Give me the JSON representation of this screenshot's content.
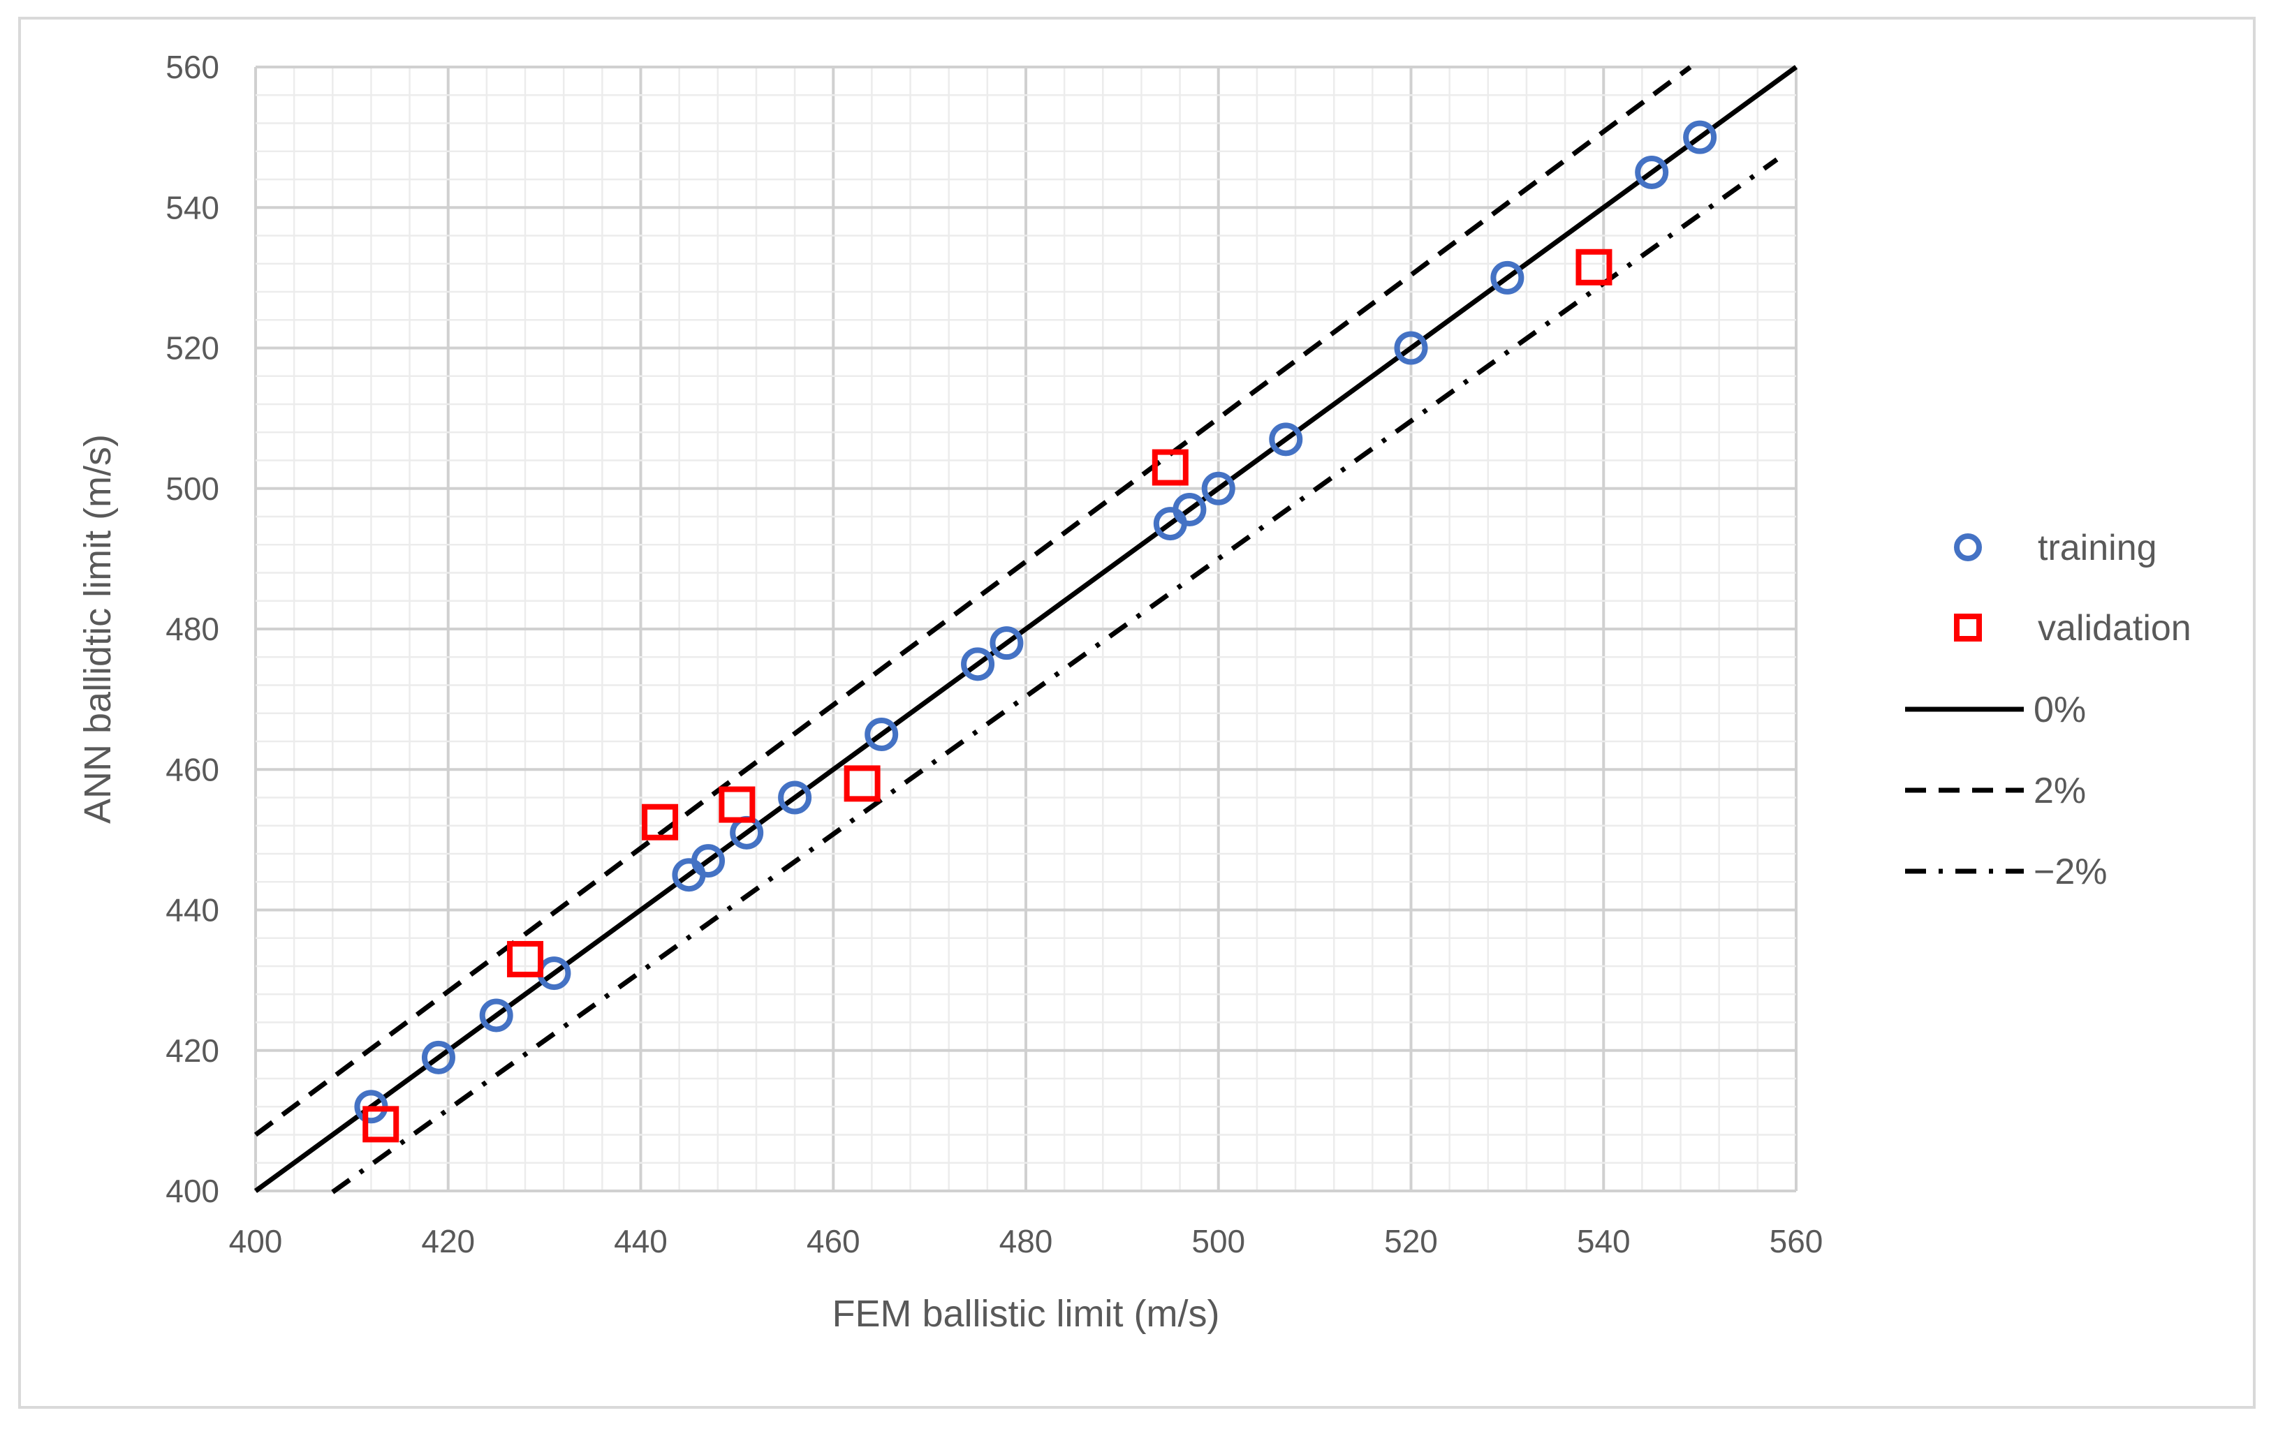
{
  "chart_data": {
    "type": "scatter",
    "title": "",
    "xlabel": "FEM ballistic limit (m/s)",
    "ylabel": "ANN ballidtic limit (m/s)",
    "xlim": [
      400,
      560
    ],
    "ylim": [
      400,
      560
    ],
    "x_ticks": [
      400,
      420,
      440,
      460,
      480,
      500,
      520,
      540,
      560
    ],
    "y_ticks": [
      400,
      420,
      440,
      460,
      480,
      500,
      520,
      540,
      560
    ],
    "grid": "major and minor",
    "legend_position": "right",
    "series": [
      {
        "name": "training",
        "marker": "circle",
        "color": "#4472c4",
        "points": [
          [
            412,
            412
          ],
          [
            419,
            419
          ],
          [
            425,
            425
          ],
          [
            431,
            431
          ],
          [
            445,
            445
          ],
          [
            447,
            447
          ],
          [
            451,
            451
          ],
          [
            456,
            456
          ],
          [
            465,
            465
          ],
          [
            475,
            475
          ],
          [
            478,
            478
          ],
          [
            495,
            495
          ],
          [
            497,
            497
          ],
          [
            500,
            500
          ],
          [
            507,
            507
          ],
          [
            520,
            520
          ],
          [
            530,
            530
          ],
          [
            545,
            545
          ],
          [
            550,
            550
          ]
        ]
      },
      {
        "name": "validation",
        "marker": "square",
        "color": "#ff0000",
        "points": [
          [
            413,
            409.5
          ],
          [
            428,
            433
          ],
          [
            442,
            452.5
          ],
          [
            450,
            455
          ],
          [
            463,
            458
          ],
          [
            495,
            503
          ],
          [
            539,
            531.5
          ]
        ]
      },
      {
        "name": "0%",
        "line": "solid",
        "color": "#000000",
        "slope": 1.0,
        "x_range": [
          400,
          560
        ]
      },
      {
        "name": "2%",
        "line": "dashed",
        "color": "#000000",
        "slope": 1.02,
        "x_range": [
          400,
          549
        ]
      },
      {
        "name": "−2%",
        "line": "dash-dot",
        "color": "#000000",
        "slope": 0.98,
        "x_range": [
          408,
          558
        ]
      }
    ]
  }
}
